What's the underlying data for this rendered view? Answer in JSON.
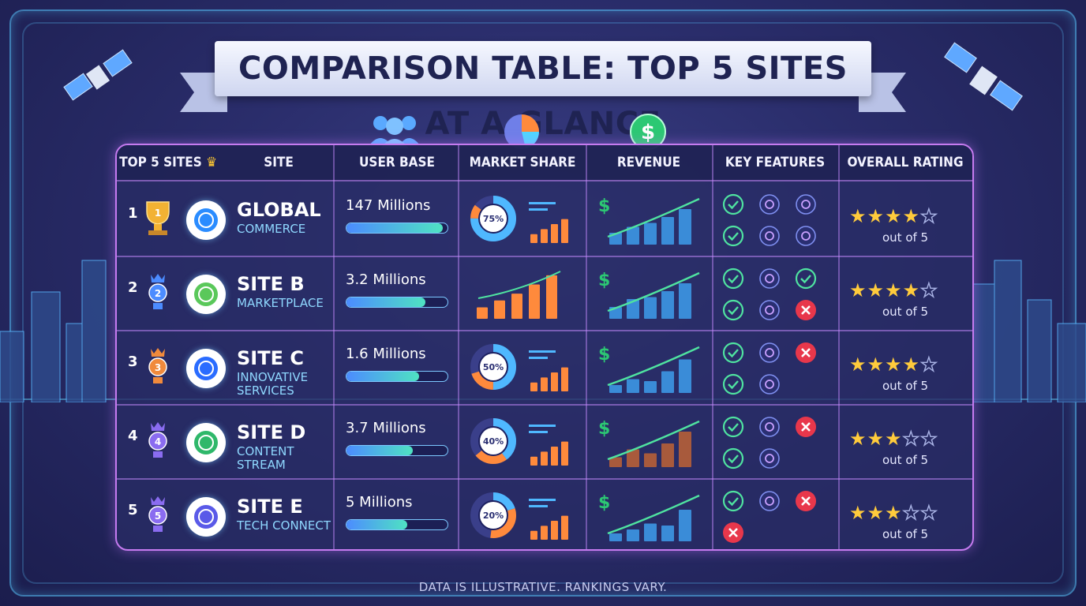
{
  "title": "COMPARISON TABLE: TOP 5 SITES AT A GLANCE",
  "footer": "DATA IS ILLUSTRATIVE. RANKINGS VARY.",
  "headers": {
    "top5": "TOP 5 SITES",
    "site": "SITE",
    "user_base": "USER BASE",
    "market_share": "MARKET SHARE",
    "revenue": "REVENUE",
    "key_features": "KEY FEATURES",
    "overall_rating": "OVERALL RATING"
  },
  "rating_suffix": "out of 5",
  "colors": {
    "accent": "#c67bf0",
    "check": "#4fe3a0",
    "cross": "#e8374b",
    "star": "#ffcb3c",
    "cyan": "#4fc8ff"
  },
  "sites": [
    {
      "rank": "1",
      "medal": "gold",
      "logo_icon": "globe-icon",
      "name": "GLOBAL",
      "sub": "COMMERCE",
      "users": "147 Millions",
      "users_fill": 0.95,
      "share": "75%",
      "share_value": 0.75,
      "features": [
        "check-icon",
        "lightbulb-icon",
        "document-icon",
        "check-icon",
        "list-icon",
        "puzzle-icon"
      ],
      "rating": 4.5
    },
    {
      "rank": "2",
      "medal": "blue",
      "logo_icon": "cube-icon",
      "name": "SITE B",
      "sub": "MARKETPLACE",
      "users": "3.2 Millions",
      "users_fill": 0.78,
      "share": "",
      "share_value": null,
      "features": [
        "check-icon",
        "gear-icon",
        "check-icon",
        "check-icon",
        "tools-icon",
        "cross-icon"
      ],
      "rating": 4
    },
    {
      "rank": "3",
      "medal": "orange",
      "logo_icon": "chart-line-icon",
      "name": "SITE C",
      "sub": "INNOVATIVE SERVICES",
      "users": "1.6 Millions",
      "users_fill": 0.72,
      "share": "50%",
      "share_value": 0.5,
      "features": [
        "check-icon",
        "gear-icon",
        "cross-icon",
        "check-icon",
        "location-icon",
        ""
      ],
      "rating": 4
    },
    {
      "rank": "4",
      "medal": "purple",
      "logo_icon": "document-lines-icon",
      "name": "SITE D",
      "sub": "CONTENT STREAM",
      "users": "3.7 Millions",
      "users_fill": 0.66,
      "share": "40%",
      "share_value": 0.4,
      "features": [
        "check-icon",
        "people-icon",
        "cross-icon",
        "check-icon",
        "chart-icon",
        ""
      ],
      "rating": 3.5
    },
    {
      "rank": "5",
      "medal": "purple",
      "logo_icon": "network-icon",
      "name": "SITE E",
      "sub": "TECH CONNECT",
      "users": "5 Millions",
      "users_fill": 0.6,
      "share": "20%",
      "share_value": 0.2,
      "features": [
        "check-icon",
        "gear-icon",
        "cross-icon",
        "cross-icon",
        "",
        ""
      ],
      "rating": 3.5
    }
  ]
}
